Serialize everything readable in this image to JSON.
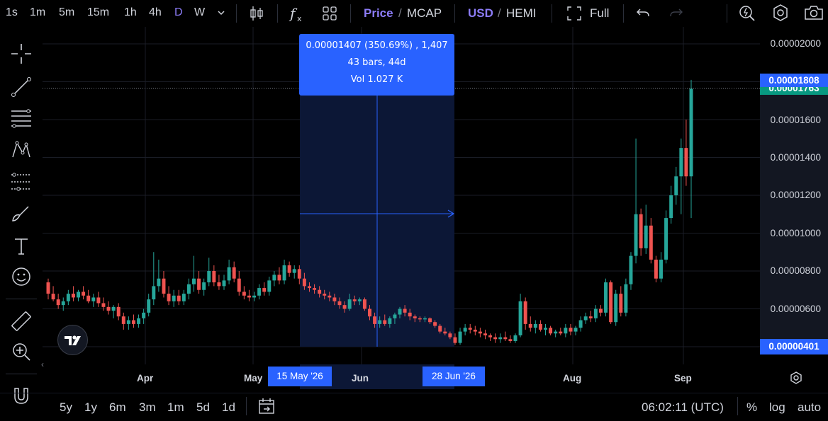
{
  "toolbar": {
    "timeframes": [
      "1s",
      "1m",
      "5m",
      "15m",
      "1h",
      "4h",
      "D",
      "W"
    ],
    "active_timeframe": "D",
    "price_label": "Price",
    "mcap_label": "MCAP",
    "slash": "/",
    "currency_usd": "USD",
    "currency_token": "HEMI",
    "full_label": "Full"
  },
  "measure": {
    "line1": "0.00001407 (350.69%) , 1,407",
    "line2": "43 bars, 44d",
    "line3": "Vol 1.027 K"
  },
  "price_axis": {
    "ticks": [
      "0.00002000",
      "0.00001600",
      "0.00001400",
      "0.00001200",
      "0.00001000",
      "0.00000800",
      "0.00000600"
    ],
    "current_price": "0.00001808",
    "last_price": "0.00001763",
    "measure_low": "0.00000401"
  },
  "time_axis": {
    "labels": [
      "Apr",
      "May",
      "Jun",
      "Aug",
      "Sep"
    ],
    "range_start": "15 May '26",
    "range_end": "28 Jun '26"
  },
  "ranges": [
    "5y",
    "1y",
    "6m",
    "3m",
    "1m",
    "5d",
    "1d"
  ],
  "clock": "06:02:11 (UTC)",
  "scale_options": [
    "%",
    "log",
    "auto"
  ],
  "colors": {
    "up": "#26a69a",
    "down": "#ef5350",
    "accent": "#2962ff",
    "active": "#8c7cf7"
  },
  "chart_data": {
    "type": "candlestick",
    "y_range": [
      3.6e-06,
      2.05e-05
    ],
    "candles": [
      [
        7.4e-06,
        7.6e-06,
        6.5e-06,
        6.8e-06
      ],
      [
        6.8e-06,
        7.2e-06,
        6.4e-06,
        6.5e-06
      ],
      [
        6.5e-06,
        6.8e-06,
        6e-06,
        6.2e-06
      ],
      [
        6.2e-06,
        6.6e-06,
        5.9e-06,
        6.4e-06
      ],
      [
        6.4e-06,
        7e-06,
        6.2e-06,
        6.8e-06
      ],
      [
        6.8e-06,
        7.2e-06,
        6.4e-06,
        6.6e-06
      ],
      [
        6.6e-06,
        7e-06,
        6.4e-06,
        6.9e-06
      ],
      [
        6.9e-06,
        7.2e-06,
        6.5e-06,
        6.7e-06
      ],
      [
        6.7e-06,
        7e-06,
        6.3e-06,
        6.4e-06
      ],
      [
        6.4e-06,
        6.8e-06,
        6.1e-06,
        6.6e-06
      ],
      [
        6.6e-06,
        6.9e-06,
        6.1e-06,
        6.3e-06
      ],
      [
        6.3e-06,
        6.6e-06,
        5.9e-06,
        6.1e-06
      ],
      [
        6.1e-06,
        6.4e-06,
        5.7e-06,
        5.9e-06
      ],
      [
        5.9e-06,
        6.2e-06,
        5.5e-06,
        6.1e-06
      ],
      [
        6.1e-06,
        6.3e-06,
        5.4e-06,
        5.6e-06
      ],
      [
        5.6e-06,
        5.8e-06,
        4.9e-06,
        5.2e-06
      ],
      [
        5.2e-06,
        5.6e-06,
        4.9e-06,
        5.4e-06
      ],
      [
        5.4e-06,
        5.7e-06,
        5e-06,
        5.2e-06
      ],
      [
        5.2e-06,
        5.7e-06,
        5e-06,
        5.5e-06
      ],
      [
        5.5e-06,
        6e-06,
        5.2e-06,
        5.8e-06
      ],
      [
        5.8e-06,
        6.8e-06,
        5.6e-06,
        6.5e-06
      ],
      [
        6.5e-06,
        9e-06,
        6.2e-06,
        7.2e-06
      ],
      [
        7.2e-06,
        8.6e-06,
        6.9e-06,
        7.6e-06
      ],
      [
        7.6e-06,
        8e-06,
        6.6e-06,
        6.8e-06
      ],
      [
        6.8e-06,
        7.2e-06,
        6.2e-06,
        6.4e-06
      ],
      [
        6.4e-06,
        7e-06,
        6.1e-06,
        6.7e-06
      ],
      [
        6.7e-06,
        7e-06,
        6.2e-06,
        6.4e-06
      ],
      [
        6.4e-06,
        7e-06,
        6.2e-06,
        6.8e-06
      ],
      [
        6.8e-06,
        7.6e-06,
        6.5e-06,
        7.3e-06
      ],
      [
        7.3e-06,
        8.8e-06,
        6.9e-06,
        7.6e-06
      ],
      [
        7.6e-06,
        8e-06,
        6.8e-06,
        7e-06
      ],
      [
        7e-06,
        7.6e-06,
        6.7e-06,
        7.4e-06
      ],
      [
        7.4e-06,
        8.7e-06,
        7.2e-06,
        8e-06
      ],
      [
        8e-06,
        8.3e-06,
        7.2e-06,
        7.4e-06
      ],
      [
        7.4e-06,
        7.8e-06,
        7e-06,
        7.2e-06
      ],
      [
        7.2e-06,
        7.8e-06,
        7e-06,
        7.5e-06
      ],
      [
        7.5e-06,
        8.6e-06,
        7.3e-06,
        8.2e-06
      ],
      [
        8.2e-06,
        8.5e-06,
        7.4e-06,
        7.6e-06
      ],
      [
        7.6e-06,
        8e-06,
        6.7e-06,
        6.9e-06
      ],
      [
        6.9e-06,
        7.2e-06,
        6.5e-06,
        6.7e-06
      ],
      [
        6.7e-06,
        7e-06,
        6.4e-06,
        6.6e-06
      ],
      [
        6.6e-06,
        6.9e-06,
        6.4e-06,
        6.7e-06
      ],
      [
        6.7e-06,
        7.3e-06,
        6.5e-06,
        7.1e-06
      ],
      [
        7.1e-06,
        7.4e-06,
        6.7e-06,
        6.9e-06
      ],
      [
        6.9e-06,
        7.7e-06,
        6.7e-06,
        7.5e-06
      ],
      [
        7.5e-06,
        8e-06,
        7.2e-06,
        7.8e-06
      ],
      [
        7.8e-06,
        8.2e-06,
        7.3e-06,
        7.5e-06
      ],
      [
        7.5e-06,
        8.6e-06,
        7.3e-06,
        8.3e-06
      ],
      [
        8.3e-06,
        8.5e-06,
        7.7e-06,
        7.9e-06
      ],
      [
        7.9e-06,
        8.3e-06,
        7.6e-06,
        8.1e-06
      ],
      [
        8.1e-06,
        8.3e-06,
        7.3e-06,
        7.6e-06
      ],
      [
        7.6e-06,
        7.9e-06,
        7e-06,
        7.2e-06
      ],
      [
        7.2e-06,
        7.4e-06,
        6.9e-06,
        7.1e-06
      ],
      [
        7.1e-06,
        7.3e-06,
        6.8e-06,
        7e-06
      ],
      [
        7e-06,
        7.2e-06,
        6.6e-06,
        6.8e-06
      ],
      [
        6.8e-06,
        7e-06,
        6.5e-06,
        6.7e-06
      ],
      [
        6.7e-06,
        6.9e-06,
        6.4e-06,
        6.6e-06
      ],
      [
        6.6e-06,
        6.8e-06,
        6.2e-06,
        6.4e-06
      ],
      [
        6.4e-06,
        6.6e-06,
        6e-06,
        6.2e-06
      ],
      [
        6.2e-06,
        6.4e-06,
        5.8e-06,
        6e-06
      ],
      [
        6e-06,
        6.8e-06,
        5.9e-06,
        6.5e-06
      ],
      [
        6.5e-06,
        6.7e-06,
        6.2e-06,
        6.4e-06
      ],
      [
        6.4e-06,
        6.6e-06,
        6.2e-06,
        6.5e-06
      ],
      [
        6.5e-06,
        6.6e-06,
        5.9e-06,
        6e-06
      ],
      [
        6e-06,
        6.2e-06,
        5.4e-06,
        5.6e-06
      ],
      [
        5.6e-06,
        5.8e-06,
        5e-06,
        5.2e-06
      ],
      [
        5.2e-06,
        5.6e-06,
        5e-06,
        5.4e-06
      ],
      [
        5.4e-06,
        5.7e-06,
        5.1e-06,
        5.2e-06
      ],
      [
        5.2e-06,
        5.6e-06,
        5e-06,
        5.5e-06
      ],
      [
        5.5e-06,
        5.8e-06,
        5.2e-06,
        5.7e-06
      ],
      [
        5.7e-06,
        6.1e-06,
        5.5e-06,
        6e-06
      ],
      [
        6e-06,
        6.2e-06,
        5.6e-06,
        5.8e-06
      ],
      [
        5.8e-06,
        6e-06,
        5.4e-06,
        5.6e-06
      ],
      [
        5.6e-06,
        5.7e-06,
        5.3e-06,
        5.5e-06
      ],
      [
        5.5e-06,
        5.6e-06,
        5.3e-06,
        5.45e-06
      ],
      [
        5.45e-06,
        5.6e-06,
        5.3e-06,
        5.5e-06
      ],
      [
        5.5e-06,
        5.55e-06,
        5.2e-06,
        5.3e-06
      ],
      [
        5.3e-06,
        5.4e-06,
        5e-06,
        5.1e-06
      ],
      [
        5.1e-06,
        5.2e-06,
        4.7e-06,
        4.8e-06
      ],
      [
        4.8e-06,
        5e-06,
        4.6e-06,
        4.7e-06
      ],
      [
        4.7e-06,
        4.8e-06,
        4.4e-06,
        4.5e-06
      ],
      [
        4.5e-06,
        4.7e-06,
        4.1e-06,
        4.2e-06
      ],
      [
        4.2e-06,
        5e-06,
        4.1e-06,
        4.8e-06
      ],
      [
        4.8e-06,
        5.2e-06,
        4.6e-06,
        5e-06
      ],
      [
        5e-06,
        5.2e-06,
        4.7e-06,
        4.9e-06
      ],
      [
        4.9e-06,
        5.1e-06,
        4.6e-06,
        4.8e-06
      ],
      [
        4.8e-06,
        5e-06,
        4.5e-06,
        4.7e-06
      ],
      [
        4.7e-06,
        4.9e-06,
        4.4e-06,
        4.6e-06
      ],
      [
        4.6e-06,
        4.7e-06,
        4.3e-06,
        4.5e-06
      ],
      [
        4.5e-06,
        4.7e-06,
        4.2e-06,
        4.4e-06
      ],
      [
        4.4e-06,
        4.7e-06,
        4.2e-06,
        4.5e-06
      ],
      [
        4.5e-06,
        4.8e-06,
        4.3e-06,
        4.4e-06
      ],
      [
        4.4e-06,
        4.6e-06,
        4.2e-06,
        4.3e-06
      ],
      [
        4.3e-06,
        4.7e-06,
        4.2e-06,
        4.6e-06
      ],
      [
        4.6e-06,
        6.8e-06,
        4.5e-06,
        6.4e-06
      ],
      [
        6.4e-06,
        6.6e-06,
        4.9e-06,
        5.2e-06
      ],
      [
        5.2e-06,
        5.6e-06,
        4.8e-06,
        5e-06
      ],
      [
        5e-06,
        5.4e-06,
        4.7e-06,
        5.2e-06
      ],
      [
        5.2e-06,
        5.4e-06,
        4.8e-06,
        4.9e-06
      ],
      [
        4.9e-06,
        5.2e-06,
        4.6e-06,
        5e-06
      ],
      [
        5e-06,
        5.1e-06,
        4.6e-06,
        4.7e-06
      ],
      [
        4.7e-06,
        4.9e-06,
        4.5e-06,
        4.8e-06
      ],
      [
        4.8e-06,
        5e-06,
        4.6e-06,
        4.7e-06
      ],
      [
        4.7e-06,
        5.2e-06,
        4.5e-06,
        5e-06
      ],
      [
        5e-06,
        5.2e-06,
        4.6e-06,
        4.8e-06
      ],
      [
        4.8e-06,
        5.1e-06,
        4.6e-06,
        5e-06
      ],
      [
        5e-06,
        5.6e-06,
        4.8e-06,
        5.4e-06
      ],
      [
        5.4e-06,
        5.8e-06,
        5.2e-06,
        5.6e-06
      ],
      [
        5.6e-06,
        5.9e-06,
        5.3e-06,
        5.5e-06
      ],
      [
        5.5e-06,
        6.2e-06,
        5.3e-06,
        6e-06
      ],
      [
        6e-06,
        6.2e-06,
        5.6e-06,
        5.8e-06
      ],
      [
        5.8e-06,
        7.6e-06,
        5.6e-06,
        7.4e-06
      ],
      [
        7.4e-06,
        7.5e-06,
        5.2e-06,
        5.3e-06
      ],
      [
        5.3e-06,
        7e-06,
        5.1e-06,
        6.8e-06
      ],
      [
        6.8e-06,
        7.2e-06,
        5.6e-06,
        5.8e-06
      ],
      [
        5.8e-06,
        7.6e-06,
        5.6e-06,
        7.3e-06
      ],
      [
        7.3e-06,
        9e-06,
        7e-06,
        8.8e-06
      ],
      [
        8.8e-06,
        1.5e-05,
        8.4e-06,
        1.1e-05
      ],
      [
        1.1e-05,
        1.13e-05,
        8.8e-06,
        9.2e-06
      ],
      [
        9.2e-06,
        1.15e-05,
        8.9e-06,
        1.04e-05
      ],
      [
        1.04e-05,
        1.08e-05,
        8.4e-06,
        8.6e-06
      ],
      [
        8.6e-06,
        8.8e-06,
        7.4e-06,
        7.6e-06
      ],
      [
        7.6e-06,
        9e-06,
        7.4e-06,
        8.6e-06
      ],
      [
        8.6e-06,
        1.12e-05,
        8.4e-06,
        1.08e-05
      ],
      [
        1.08e-05,
        1.25e-05,
        1.05e-05,
        1.2e-05
      ],
      [
        1.2e-05,
        1.35e-05,
        1.15e-05,
        1.3e-05
      ],
      [
        1.3e-05,
        1.5e-05,
        1.1e-05,
        1.45e-05
      ],
      [
        1.45e-05,
        1.6e-05,
        1.25e-05,
        1.3e-05
      ],
      [
        1.3e-05,
        1.81e-05,
        1.08e-05,
        1.763e-05
      ]
    ]
  }
}
